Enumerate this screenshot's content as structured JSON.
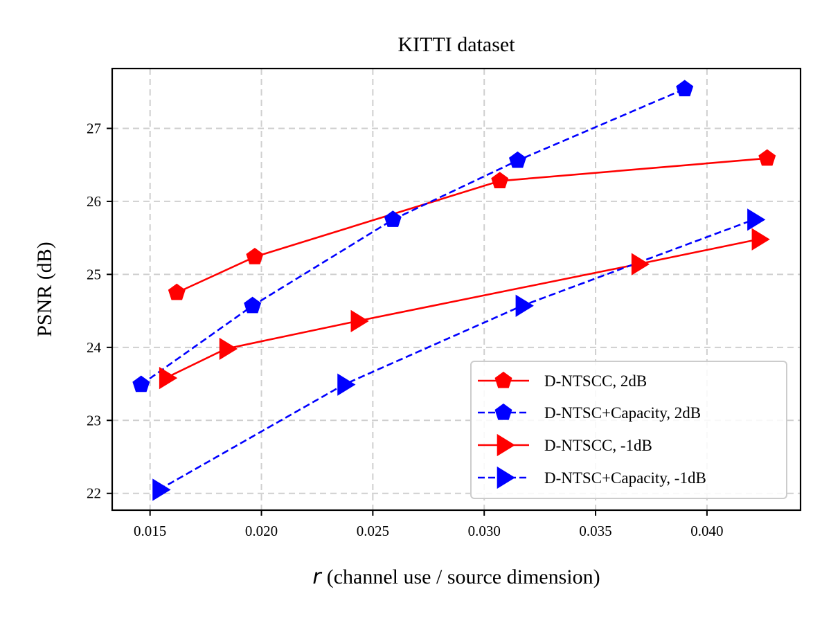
{
  "chart_data": {
    "type": "line",
    "title": "KITTI dataset",
    "xlabel_symbol": "r",
    "xlabel": "(channel use / source dimension)",
    "ylabel": "PSNR (dB)",
    "xlim": [
      0.0133,
      0.0442
    ],
    "ylim": [
      21.77,
      27.82
    ],
    "xticks": [
      0.015,
      0.02,
      0.025,
      0.03,
      0.035,
      0.04
    ],
    "xtick_labels": [
      "0.015",
      "0.020",
      "0.025",
      "0.030",
      "0.035",
      "0.040"
    ],
    "yticks": [
      22,
      23,
      24,
      25,
      26,
      27
    ],
    "ytick_labels": [
      "22",
      "23",
      "24",
      "25",
      "26",
      "27"
    ],
    "grid": true,
    "legend_position": "lower-right",
    "series": [
      {
        "name": "D-NTSCC, 2dB",
        "color": "#ff0000",
        "line_style": "solid",
        "marker": "pentagon",
        "x": [
          0.0162,
          0.0197,
          0.0307,
          0.0427
        ],
        "y": [
          24.75,
          25.24,
          26.28,
          26.59
        ]
      },
      {
        "name": "D-NTSC+Capacity, 2dB",
        "color": "#0000ff",
        "line_style": "dashed",
        "marker": "pentagon",
        "x": [
          0.0146,
          0.0196,
          0.0259,
          0.0315,
          0.039
        ],
        "y": [
          23.49,
          24.57,
          25.75,
          26.56,
          27.54
        ]
      },
      {
        "name": "D-NTSCC, -1dB",
        "color": "#ff0000",
        "line_style": "solid",
        "marker": "triangle-right",
        "x": [
          0.0157,
          0.0184,
          0.0243,
          0.0369,
          0.0423
        ],
        "y": [
          23.58,
          23.98,
          24.36,
          25.14,
          25.48
        ]
      },
      {
        "name": "D-NTSC+Capacity, -1dB",
        "color": "#0000ff",
        "line_style": "dashed",
        "marker": "triangle-right",
        "x": [
          0.0154,
          0.0237,
          0.0317,
          0.0421
        ],
        "y": [
          22.05,
          23.49,
          24.57,
          25.75
        ]
      }
    ]
  }
}
